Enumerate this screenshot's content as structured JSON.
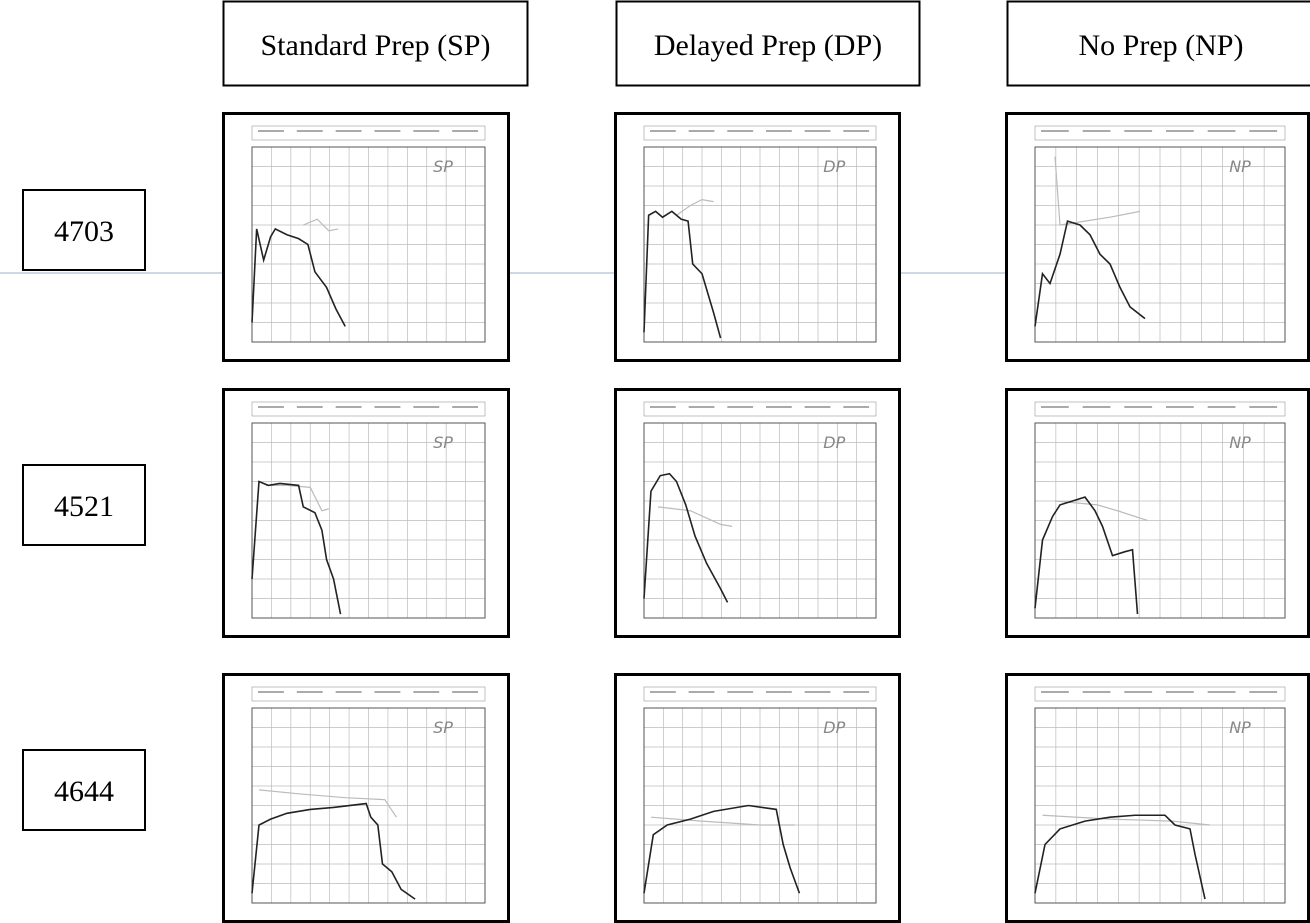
{
  "columns": [
    "Standard Prep (SP)",
    "Delayed Prep (DP)",
    "No Prep (NP)"
  ],
  "rows": [
    "4703",
    "4521",
    "4644"
  ],
  "panels": [
    [
      "SP",
      "DP",
      "NP"
    ],
    [
      "SP",
      "DP",
      "NP"
    ],
    [
      "SP",
      "DP",
      "NP"
    ]
  ]
}
